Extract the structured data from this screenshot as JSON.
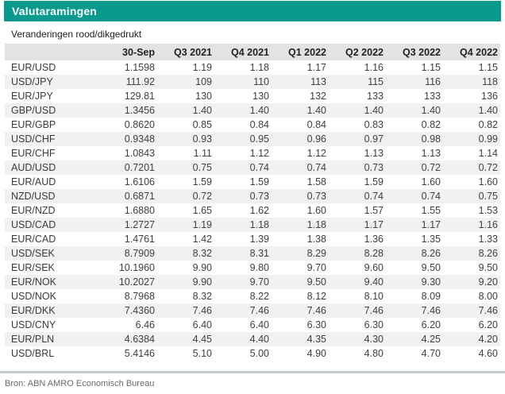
{
  "page": {
    "title": "Valutaramingen",
    "subtitle": "Veranderingen rood/dikgedrukt",
    "source": "Bron: ABN AMRO Economisch Bureau"
  },
  "colors": {
    "accent_teal": "#089a8c",
    "header_row_bg": "#e3e3e3",
    "alt_row_bg": "#f1f1f1",
    "divider": "#c3cbca",
    "body_text": "#3f3f3f",
    "source_text": "#6a6a6a"
  },
  "chart_data": {
    "type": "table",
    "title": "Valutaramingen",
    "subtitle": "Veranderingen rood/dikgedrukt",
    "source": "Bron: ABN AMRO Economisch Bureau",
    "columns": [
      "",
      "30-Sep",
      "Q3 2021",
      "Q4 2021",
      "Q1 2022",
      "Q2 2022",
      "Q3 2022",
      "Q4 2022"
    ],
    "rows": [
      {
        "pair": "EUR/USD",
        "values": [
          "1.1598",
          "1.19",
          "1.18",
          "1.17",
          "1.16",
          "1.15",
          "1.15"
        ]
      },
      {
        "pair": "USD/JPY",
        "values": [
          "111.92",
          "109",
          "110",
          "113",
          "115",
          "116",
          "118"
        ]
      },
      {
        "pair": "EUR/JPY",
        "values": [
          "129.81",
          "130",
          "130",
          "132",
          "133",
          "133",
          "136"
        ]
      },
      {
        "pair": "GBP/USD",
        "values": [
          "1.3456",
          "1.40",
          "1.40",
          "1.40",
          "1.40",
          "1.40",
          "1.40"
        ]
      },
      {
        "pair": "EUR/GBP",
        "values": [
          "0.8620",
          "0.85",
          "0.84",
          "0.84",
          "0.83",
          "0.82",
          "0.82"
        ]
      },
      {
        "pair": "USD/CHF",
        "values": [
          "0.9348",
          "0.93",
          "0.95",
          "0.96",
          "0.97",
          "0.98",
          "0.99"
        ]
      },
      {
        "pair": "EUR/CHF",
        "values": [
          "1.0843",
          "1.11",
          "1.12",
          "1.12",
          "1.13",
          "1.13",
          "1.14"
        ]
      },
      {
        "pair": "AUD/USD",
        "values": [
          "0.7201",
          "0.75",
          "0.74",
          "0.74",
          "0.73",
          "0.72",
          "0.72"
        ]
      },
      {
        "pair": "EUR/AUD",
        "values": [
          "1.6106",
          "1.59",
          "1.59",
          "1.58",
          "1.59",
          "1.60",
          "1.60"
        ]
      },
      {
        "pair": "NZD/USD",
        "values": [
          "0.6871",
          "0.72",
          "0.73",
          "0.73",
          "0.74",
          "0.74",
          "0.75"
        ]
      },
      {
        "pair": "EUR/NZD",
        "values": [
          "1.6880",
          "1.65",
          "1.62",
          "1.60",
          "1.57",
          "1.55",
          "1.53"
        ]
      },
      {
        "pair": "USD/CAD",
        "values": [
          "1.2727",
          "1.19",
          "1.18",
          "1.18",
          "1.17",
          "1.17",
          "1.16"
        ]
      },
      {
        "pair": "EUR/CAD",
        "values": [
          "1.4761",
          "1.42",
          "1.39",
          "1.38",
          "1.36",
          "1.35",
          "1.33"
        ]
      },
      {
        "pair": "USD/SEK",
        "values": [
          "8.7909",
          "8.32",
          "8.31",
          "8.29",
          "8.28",
          "8.26",
          "8.26"
        ]
      },
      {
        "pair": "EUR/SEK",
        "values": [
          "10.1960",
          "9.90",
          "9.80",
          "9.70",
          "9.60",
          "9.50",
          "9.50"
        ]
      },
      {
        "pair": "EUR/NOK",
        "values": [
          "10.2027",
          "9.90",
          "9.70",
          "9.50",
          "9.40",
          "9.30",
          "9.20"
        ]
      },
      {
        "pair": "USD/NOK",
        "values": [
          "8.7968",
          "8.32",
          "8.22",
          "8.12",
          "8.10",
          "8.09",
          "8.00"
        ]
      },
      {
        "pair": "EUR/DKK",
        "values": [
          "7.4360",
          "7.46",
          "7.46",
          "7.46",
          "7.46",
          "7.46",
          "7.46"
        ]
      },
      {
        "pair": "USD/CNY",
        "values": [
          "6.46",
          "6.40",
          "6.40",
          "6.30",
          "6.30",
          "6.20",
          "6.20"
        ]
      },
      {
        "pair": "EUR/PLN",
        "values": [
          "4.6384",
          "4.45",
          "4.40",
          "4.35",
          "4.30",
          "4.25",
          "4.20"
        ]
      },
      {
        "pair": "USD/BRL",
        "values": [
          "5.4146",
          "5.10",
          "5.00",
          "4.90",
          "4.80",
          "4.70",
          "4.60"
        ]
      }
    ]
  }
}
